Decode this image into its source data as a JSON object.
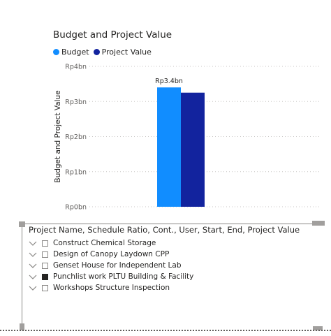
{
  "chart_data": {
    "type": "bar",
    "title": "Budget and Project Value",
    "ylabel": "Budget and Project Value",
    "xlabel": "",
    "ylim": [
      0,
      4
    ],
    "y_ticks": [
      "Rp0bn",
      "Rp1bn",
      "Rp2bn",
      "Rp3bn",
      "Rp4bn"
    ],
    "y_tick_values": [
      0,
      1,
      2,
      3,
      4
    ],
    "series": [
      {
        "name": "Budget",
        "values": [
          3.4
        ],
        "color": "#118dff",
        "data_label": "Rp3.4bn"
      },
      {
        "name": "Project Value",
        "values": [
          3.25
        ],
        "color": "#12239e",
        "data_label": ""
      }
    ],
    "grid": true,
    "legend_position": "top-left"
  },
  "slicer": {
    "header": "Project Name, Schedule Ratio, Cont., User, Start, End, Project Value",
    "items": [
      {
        "label": "Construct Chemical Storage",
        "checked": false
      },
      {
        "label": "Design of Canopy Laydown CPP",
        "checked": false
      },
      {
        "label": "Genset House for Independent Lab",
        "checked": false
      },
      {
        "label": "Punchlist work PLTU Building & Facility",
        "checked": true
      },
      {
        "label": "Workshops Structure Inspection",
        "checked": false
      }
    ],
    "icons": {
      "expand": "chevron-down-icon"
    }
  }
}
